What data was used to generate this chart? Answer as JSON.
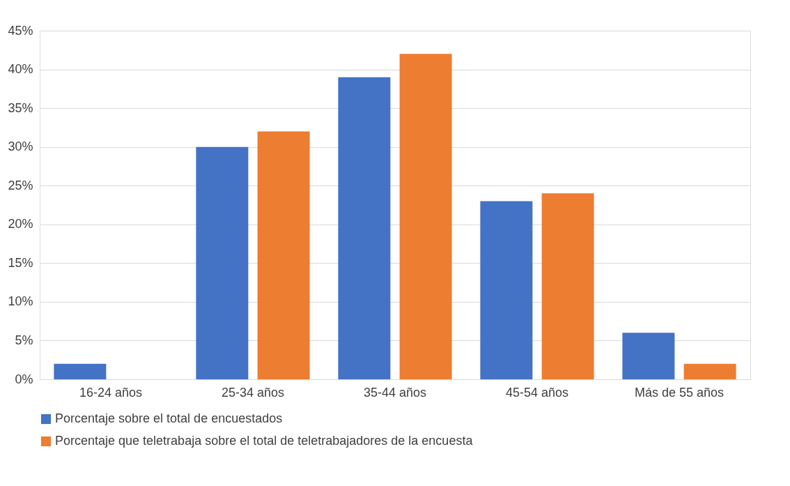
{
  "chart_data": {
    "type": "bar",
    "categories": [
      "16-24 años",
      "25-34 años",
      "35-44 años",
      "45-54 años",
      "Más de 55 años"
    ],
    "series": [
      {
        "name": "Porcentaje sobre el total de encuestados",
        "color": "#4472c4",
        "values": [
          2,
          30,
          39,
          23,
          6
        ]
      },
      {
        "name": "Porcentaje que teletrabaja sobre el total de teletrabajadores de la encuesta",
        "color": "#ed7d31",
        "values": [
          0,
          32,
          42,
          24,
          2
        ]
      }
    ],
    "ylim": [
      0,
      45
    ],
    "yticks": [
      {
        "value": 0,
        "label": "0%"
      },
      {
        "value": 5,
        "label": "5%"
      },
      {
        "value": 10,
        "label": "10%"
      },
      {
        "value": 15,
        "label": "15%"
      },
      {
        "value": 20,
        "label": "20%"
      },
      {
        "value": 25,
        "label": "25%"
      },
      {
        "value": 30,
        "label": "30%"
      },
      {
        "value": 35,
        "label": "35%"
      },
      {
        "value": 40,
        "label": "40%"
      },
      {
        "value": 45,
        "label": "45%"
      }
    ],
    "grid": "y",
    "legend": "bottom"
  }
}
